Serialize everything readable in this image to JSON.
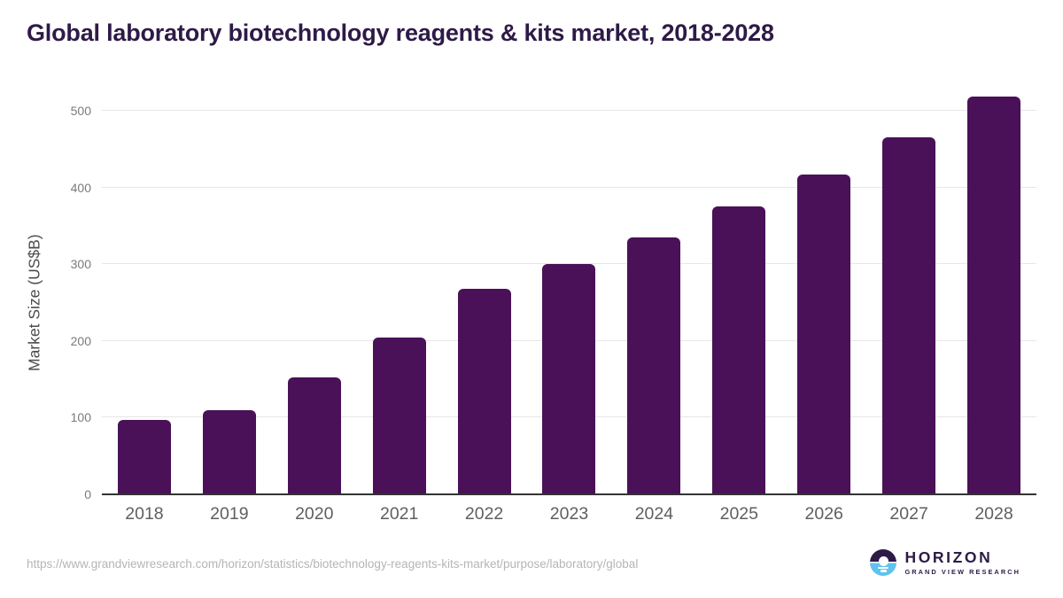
{
  "title": "Global laboratory biotechnology reagents & kits market, 2018-2028",
  "footer": {
    "source_url": "https://www.grandviewresearch.com/horizon/statistics/biotechnology-reagents-kits-market/purpose/laboratory/global",
    "logo": {
      "brand": "HORIZON",
      "tagline": "GRAND VIEW RESEARCH"
    }
  },
  "colors": {
    "bar": "#4a1158",
    "title": "#2e1a47",
    "grid": "#e7e7e7",
    "axis": "#333333",
    "tick_label": "#7a7a7a",
    "year_label": "#5f5f5f",
    "axis_title": "#4c4c4c",
    "url": "#b5b5b5",
    "logo_dark": "#2e1a47",
    "logo_blue": "#5fc3ee"
  },
  "chart_data": {
    "type": "bar",
    "title": "Global laboratory biotechnology reagents & kits market, 2018-2028",
    "categories": [
      "2018",
      "2019",
      "2020",
      "2021",
      "2022",
      "2023",
      "2024",
      "2025",
      "2026",
      "2027",
      "2028"
    ],
    "values": [
      97,
      110,
      152,
      204,
      268,
      300,
      335,
      375,
      417,
      465,
      518
    ],
    "xlabel": "",
    "ylabel": "Market Size (US$B)",
    "ylim": [
      0,
      500
    ],
    "yticks": [
      0,
      100,
      200,
      300,
      400,
      500
    ],
    "grid": true,
    "legend": false,
    "bar_color": "#4a1158"
  }
}
